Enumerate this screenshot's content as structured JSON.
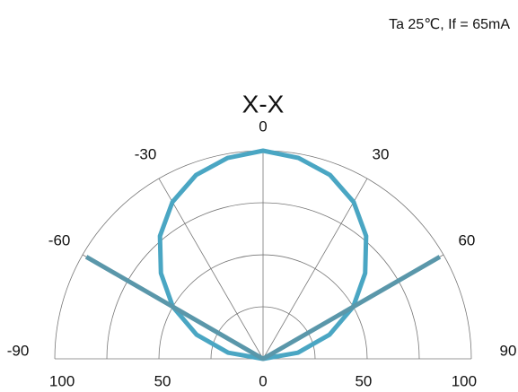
{
  "chart_data": {
    "type": "polar",
    "title": "X-X",
    "note": "Ta 25℃, If = 65mA",
    "angles": [
      -90,
      -60,
      -30,
      0,
      30,
      60,
      90
    ],
    "rlim": [
      0,
      100
    ],
    "rgrid": [
      25,
      50,
      75,
      100
    ],
    "rticks": [
      {
        "value": -100,
        "label": "100"
      },
      {
        "value": -50,
        "label": "50"
      },
      0,
      {
        "value": 50,
        "label": "50"
      },
      100
    ],
    "series": [
      {
        "color": "#4aa6c3",
        "x": [
          -90,
          -80,
          -70,
          -60,
          -50,
          -40,
          -30,
          -20,
          -10,
          0,
          10,
          20,
          30,
          40,
          50,
          60,
          70,
          80,
          90
        ],
        "values": [
          0,
          17,
          34,
          50,
          64,
          77,
          87,
          94,
          98,
          100,
          98,
          94,
          87,
          77,
          64,
          50,
          34,
          17,
          0
        ]
      },
      {
        "color": "#5a97aa",
        "x": [
          -60,
          0,
          60
        ],
        "values": [
          98,
          0,
          98
        ]
      }
    ]
  }
}
